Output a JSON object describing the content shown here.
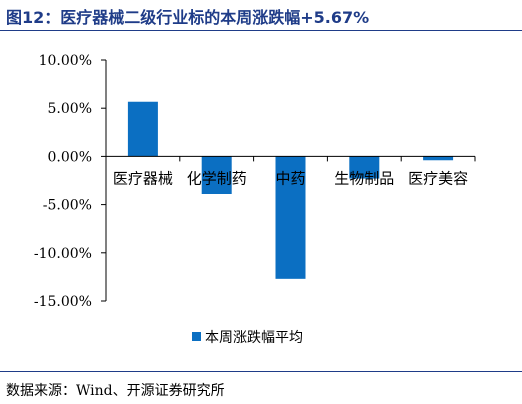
{
  "header": {
    "title": "图12：医疗器械二级行业标的本周涨跌幅+5.67%"
  },
  "footer": {
    "source": "数据来源：Wind、开源证券研究所"
  },
  "chart_data": {
    "type": "bar",
    "categories": [
      "医疗器械",
      "化学制药",
      "中药",
      "生物制品",
      "医疗美容"
    ],
    "series": [
      {
        "name": "本周涨跌幅平均",
        "values": [
          5.67,
          -3.9,
          -12.7,
          -2.3,
          -0.4
        ]
      }
    ],
    "ylim": [
      -15,
      10
    ],
    "yticks": [
      10,
      5,
      0,
      -5,
      -10,
      -15
    ],
    "ytick_labels": [
      "10.00%",
      "5.00%",
      "0.00%",
      "-5.00%",
      "-10.00%",
      "-15.00%"
    ],
    "legend_position": "bottom-center",
    "grid": false,
    "bar_color": "#0b6fc2"
  }
}
